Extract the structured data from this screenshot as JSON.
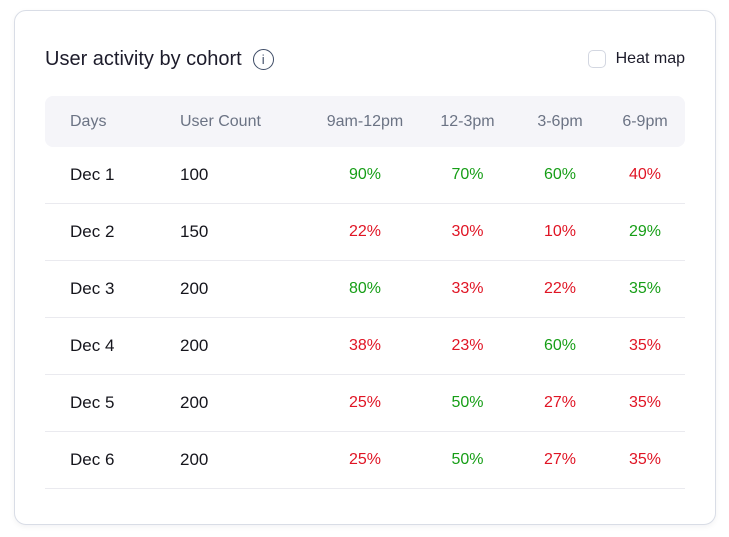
{
  "header": {
    "title": "User activity by cohort",
    "info_glyph": "i",
    "heat_map": {
      "label": "Heat map",
      "checked": false
    }
  },
  "colors": {
    "green": "#169e16",
    "red": "#e01424",
    "header_text": "#6b7384",
    "header_bg": "#f5f5f9"
  },
  "table": {
    "headers": [
      "Days",
      "User Count",
      "9am-12pm",
      "12-3pm",
      "3-6pm",
      "6-9pm"
    ],
    "rows": [
      {
        "day": "Dec 1",
        "user_count": "100",
        "percents": [
          {
            "value": "90%",
            "color": "green"
          },
          {
            "value": "70%",
            "color": "green"
          },
          {
            "value": "60%",
            "color": "green"
          },
          {
            "value": "40%",
            "color": "red"
          }
        ]
      },
      {
        "day": "Dec 2",
        "user_count": "150",
        "percents": [
          {
            "value": "22%",
            "color": "red"
          },
          {
            "value": "30%",
            "color": "red"
          },
          {
            "value": "10%",
            "color": "red"
          },
          {
            "value": "29%",
            "color": "green"
          }
        ]
      },
      {
        "day": "Dec 3",
        "user_count": "200",
        "percents": [
          {
            "value": "80%",
            "color": "green"
          },
          {
            "value": "33%",
            "color": "red"
          },
          {
            "value": "22%",
            "color": "red"
          },
          {
            "value": "35%",
            "color": "green"
          }
        ]
      },
      {
        "day": "Dec 4",
        "user_count": "200",
        "percents": [
          {
            "value": "38%",
            "color": "red"
          },
          {
            "value": "23%",
            "color": "red"
          },
          {
            "value": "60%",
            "color": "green"
          },
          {
            "value": "35%",
            "color": "red"
          }
        ]
      },
      {
        "day": "Dec 5",
        "user_count": "200",
        "percents": [
          {
            "value": "25%",
            "color": "red"
          },
          {
            "value": "50%",
            "color": "green"
          },
          {
            "value": "27%",
            "color": "red"
          },
          {
            "value": "35%",
            "color": "red"
          }
        ]
      },
      {
        "day": "Dec 6",
        "user_count": "200",
        "percents": [
          {
            "value": "25%",
            "color": "red"
          },
          {
            "value": "50%",
            "color": "green"
          },
          {
            "value": "27%",
            "color": "red"
          },
          {
            "value": "35%",
            "color": "red"
          }
        ]
      }
    ]
  }
}
